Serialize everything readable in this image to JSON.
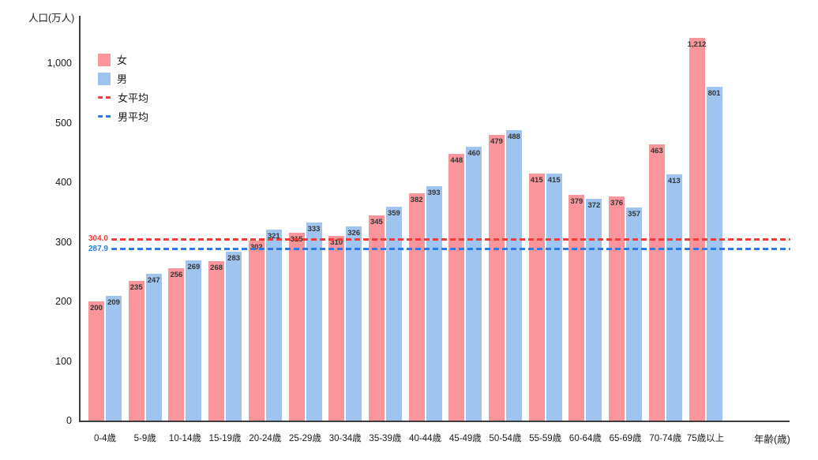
{
  "colors": {
    "female_bar": "#FA969B",
    "male_bar": "#A0C4F0",
    "female_avg_line": "#F53B36",
    "male_avg_line": "#2B7CE9",
    "axis_line": "#3d3d3d",
    "bar_label_text": "#333333"
  },
  "chart_data": {
    "type": "bar",
    "title": "",
    "ylabel": "人口(万人)",
    "xlabel": "年齢(歳)",
    "categories": [
      "0-4歳",
      "5-9歳",
      "10-14歳",
      "15-19歳",
      "20-24歳",
      "25-29歳",
      "30-34歳",
      "35-39歳",
      "40-44歳",
      "45-49歳",
      "50-54歳",
      "55-59歳",
      "60-64歳",
      "65-69歳",
      "70-74歳",
      "75歳以上"
    ],
    "series": [
      {
        "name": "女",
        "color": "#FA969B",
        "values": [
          200,
          235,
          256,
          268,
          302,
          315,
          310,
          345,
          382,
          448,
          479,
          415,
          379,
          376,
          463,
          1212
        ]
      },
      {
        "name": "男",
        "color": "#A0C4F0",
        "values": [
          209,
          247,
          269,
          283,
          321,
          333,
          326,
          359,
          393,
          460,
          488,
          415,
          372,
          357,
          413,
          801
        ]
      }
    ],
    "average_lines": [
      {
        "name": "女平均",
        "value": 304.0,
        "label": "304.0",
        "color": "#F53B36"
      },
      {
        "name": "男平均",
        "value": 287.9,
        "label": "287.9",
        "color": "#2B7CE9"
      }
    ],
    "y_ticks": [
      {
        "label": "0",
        "value": 0
      },
      {
        "label": "100",
        "value": 100
      },
      {
        "label": "200",
        "value": 200
      },
      {
        "label": "300",
        "value": 300
      },
      {
        "label": "400",
        "value": 400
      },
      {
        "label": "500",
        "value": 500
      },
      {
        "label": "1,000",
        "value": 1000
      }
    ],
    "axis_notes": "y-axis non-linear: equal tick spacing, 500-1000 segment compressed",
    "grid": false,
    "legend_position": "top-left-inside",
    "bar_value_labels": "inside-top"
  }
}
